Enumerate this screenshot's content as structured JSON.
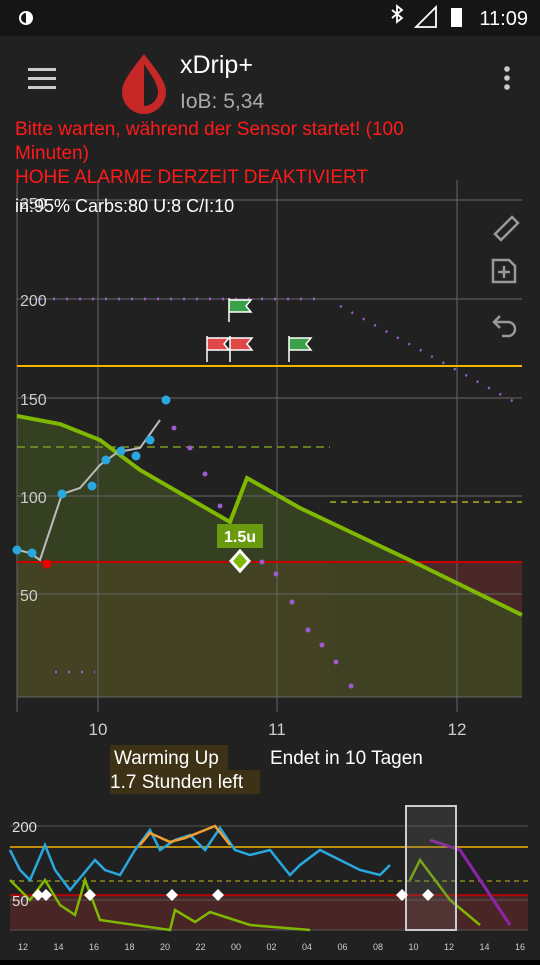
{
  "status": {
    "time": "11:09"
  },
  "app": {
    "title": "xDrip+",
    "iob": "IoB: 5,34"
  },
  "messages": [
    "Bitte warten, während der Sensor startet! (100",
    "Minuten)",
    " HOHE ALARME DERZEIT DEAKTIVIERT"
  ],
  "info": "in:95% Carbs:80 U:8 C/I:10",
  "chart": {
    "yticks": [
      "250",
      "200",
      "150",
      "100",
      "50"
    ],
    "xticks": [
      "10",
      "11",
      "12"
    ],
    "treatment": "1.5u"
  },
  "sensor": {
    "warming": "Warming Up",
    "left": "1.7 Stunden left",
    "ends": "Endet in 10 Tagen"
  },
  "preview": {
    "yticks": [
      "200",
      "50"
    ],
    "xticks": [
      "12",
      "14",
      "16",
      "18",
      "20",
      "22",
      "00",
      "02",
      "04",
      "06",
      "08",
      "10",
      "12",
      "14",
      "16"
    ]
  }
}
